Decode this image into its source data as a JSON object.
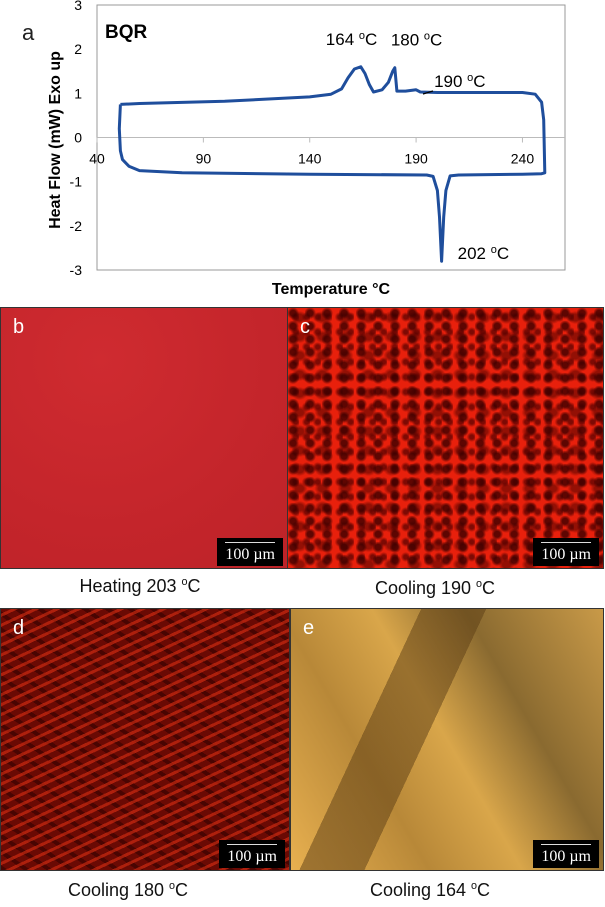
{
  "chart_data": {
    "type": "line",
    "panel_label": "a",
    "title": "BQR",
    "xlabel": "Temperature °C",
    "ylabel": "Heat Flow (mW) Exo up",
    "xlim": [
      40,
      260
    ],
    "ylim": [
      -3,
      3
    ],
    "xticks": [
      40,
      90,
      140,
      190,
      240
    ],
    "yticks": [
      3,
      2,
      1,
      0,
      -1,
      -2,
      -3
    ],
    "grid": false,
    "line_color": "#1f4e9c",
    "x": [
      51,
      60,
      100,
      140,
      150,
      155,
      158,
      161,
      164,
      166,
      168,
      170,
      174,
      177,
      179,
      180,
      181,
      185,
      190,
      192,
      200,
      240,
      246,
      249,
      250,
      250.5,
      249,
      240,
      210,
      206,
      204,
      203,
      202,
      201,
      200,
      198,
      195,
      140,
      80,
      60,
      55,
      52,
      51,
      50.5,
      51
    ],
    "y": [
      0.75,
      0.77,
      0.82,
      0.92,
      0.98,
      1.1,
      1.35,
      1.55,
      1.6,
      1.45,
      1.2,
      1.03,
      1.08,
      1.25,
      1.5,
      1.58,
      1.05,
      1.05,
      1.08,
      1.03,
      1.02,
      1.02,
      0.98,
      0.8,
      0.4,
      -0.8,
      -0.82,
      -0.83,
      -0.85,
      -0.87,
      -1.2,
      -1.8,
      -2.8,
      -1.8,
      -1.2,
      -0.88,
      -0.85,
      -0.83,
      -0.8,
      -0.75,
      -0.65,
      -0.5,
      -0.3,
      0.2,
      0.75
    ],
    "annotations": [
      {
        "text": "164 °C",
        "x": 164,
        "y": 1.6
      },
      {
        "text": "180 °C",
        "x": 180,
        "y": 1.58
      },
      {
        "text": "190 °C",
        "x": 190,
        "y": 1.08
      },
      {
        "text": "202 °C",
        "x": 202,
        "y": -2.8
      }
    ]
  },
  "panels": [
    {
      "label": "b",
      "scale": "100 µm",
      "caption_main": "Heating 203 ",
      "caption_unit": "C"
    },
    {
      "label": "c",
      "scale": "100 µm",
      "caption_main": "Cooling 190 ",
      "caption_unit": "C"
    },
    {
      "label": "d",
      "scale": "100 µm",
      "caption_main": "Cooling 180 ",
      "caption_unit": "C"
    },
    {
      "label": "e",
      "scale": "100 µm",
      "caption_main": "Cooling 164 ",
      "caption_unit": "C"
    }
  ],
  "degree_sup": "o"
}
